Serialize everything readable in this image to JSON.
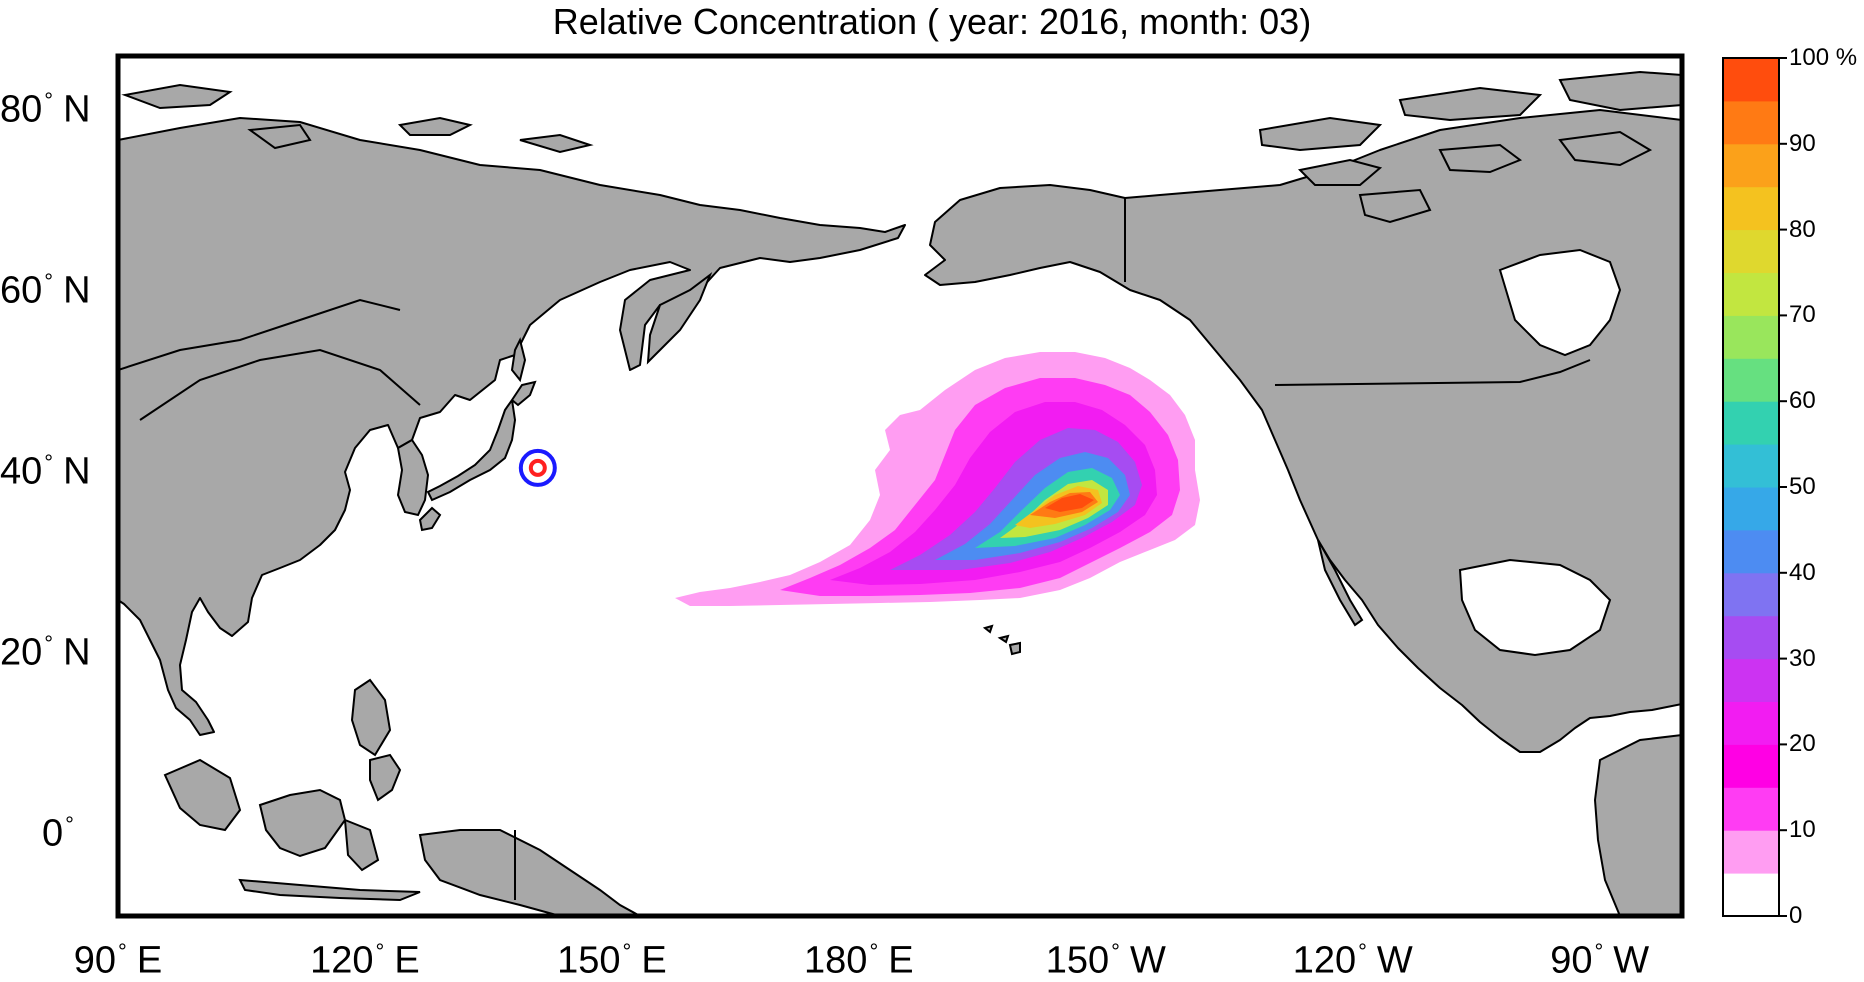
{
  "title": "Relative Concentration ( year: 2016, month: 03)",
  "axes": {
    "lat_labels": [
      {
        "value": 80,
        "deg": "°",
        "hem": "N"
      },
      {
        "value": 60,
        "deg": "°",
        "hem": "N"
      },
      {
        "value": 40,
        "deg": "°",
        "hem": "N"
      },
      {
        "value": 20,
        "deg": "°",
        "hem": "N"
      },
      {
        "value": 0,
        "deg": "°",
        "hem": ""
      }
    ],
    "lon_labels": [
      {
        "value": 90,
        "deg": "°",
        "hem": "E"
      },
      {
        "value": 120,
        "deg": "°",
        "hem": "E"
      },
      {
        "value": 150,
        "deg": "°",
        "hem": "E"
      },
      {
        "value": 180,
        "deg": "°",
        "hem": "E"
      },
      {
        "value": 150,
        "deg": "°",
        "hem": "W"
      },
      {
        "value": 120,
        "deg": "°",
        "hem": "W"
      },
      {
        "value": 90,
        "deg": "°",
        "hem": "W"
      }
    ]
  },
  "colorbar": {
    "tick_labels": [
      "0",
      "10",
      "20",
      "30",
      "40",
      "50",
      "60",
      "70",
      "80",
      "90",
      "100 %"
    ],
    "colors": [
      "#ffffff",
      "#ff9df2",
      "#ff3cf3",
      "#ff00e4",
      "#f21cf2",
      "#cc33f2",
      "#a64cf2",
      "#7f73f2",
      "#4d8cf2",
      "#36a8e8",
      "#33bfd6",
      "#33d1b0",
      "#66e080",
      "#99e65c",
      "#c2e640",
      "#dfd82e",
      "#f4c21f",
      "#fba11a",
      "#ff7a14",
      "#ff4d0d"
    ]
  },
  "map": {
    "source": {
      "lat": 39.5,
      "lon": 141.0
    },
    "source_colors": {
      "outer": "#1a1aff",
      "inner": "#ff2020"
    },
    "plume_colors": [
      "#ff9df2",
      "#ff3cf3",
      "#f21cf2",
      "#a64cf2",
      "#4d8cf2",
      "#33d1b0",
      "#c2e640",
      "#f4c21f",
      "#ff7a14",
      "#ff4d0d"
    ],
    "land_color": "#a8a8a8"
  }
}
